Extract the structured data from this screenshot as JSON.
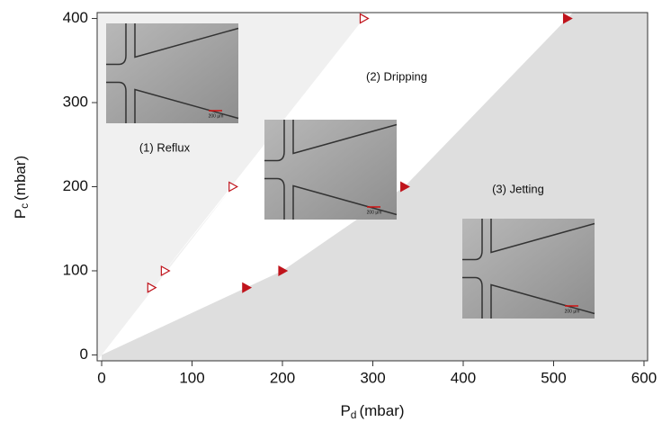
{
  "chart_data": {
    "type": "scatter",
    "x_label": {
      "symbol": "P",
      "subscript": "d",
      "unit": "(mbar)"
    },
    "y_label": {
      "symbol": "P",
      "subscript": "c",
      "unit": "(mbar)"
    },
    "xlim": [
      -5,
      604
    ],
    "ylim": [
      -7,
      407
    ],
    "xticks": [
      0,
      100,
      200,
      300,
      400,
      500,
      600
    ],
    "yticks": [
      0,
      100,
      200,
      300,
      400
    ],
    "series": [
      {
        "marker": "open",
        "color": "#c0141c",
        "region_color": "#f0f0f0",
        "x": [
          55,
          70,
          145,
          290
        ],
        "values": [
          80,
          100,
          200,
          400
        ]
      },
      {
        "marker": "filled",
        "color": "#c0141c",
        "region_color": "#dedede",
        "x": [
          160,
          200,
          335,
          515
        ],
        "values": [
          80,
          100,
          200,
          400
        ]
      }
    ],
    "annotations": [
      "(1) Reflux",
      "(2) Dripping",
      "(3) Jetting"
    ],
    "insets": [
      {
        "scale_label": "200 µm"
      },
      {
        "scale_label": "200 µm"
      },
      {
        "scale_label": "200 µm"
      }
    ]
  }
}
